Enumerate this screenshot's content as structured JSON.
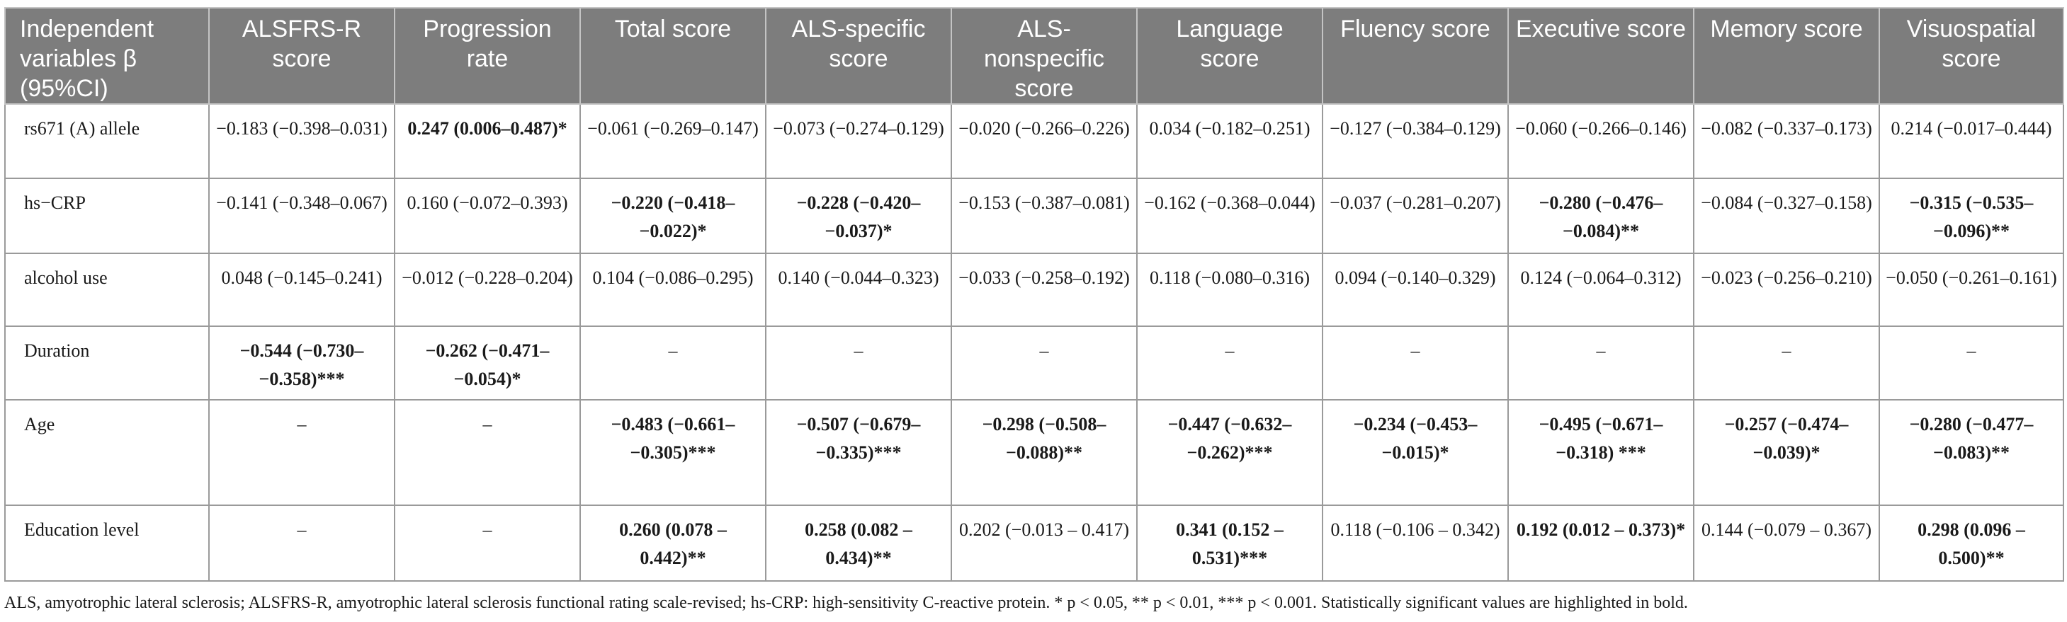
{
  "header": {
    "col0": "Independent variables β (95%CI)",
    "col1": "ALSFRS-R score",
    "col2": "Progression rate",
    "col3": "Total score",
    "col4": "ALS-specific score",
    "col5": "ALS-nonspecific score",
    "col6": "Language score",
    "col7": "Fluency score",
    "col8": "Executive score",
    "col9": "Memory score",
    "col10": "Visuospatial score"
  },
  "rows": {
    "rs671": {
      "label": "rs671 (A) allele",
      "c1": "−0.183 (−0.398–0.031)",
      "c2": "0.247 (0.006–0.487)*",
      "c3": "−0.061 (−0.269–0.147)",
      "c4": "−0.073 (−0.274–0.129)",
      "c5": "−0.020 (−0.266–0.226)",
      "c6": "0.034 (−0.182–0.251)",
      "c7": "−0.127 (−0.384–0.129)",
      "c8": "−0.060 (−0.266–0.146)",
      "c9": "−0.082 (−0.337–0.173)",
      "c10": "0.214 (−0.017–0.444)"
    },
    "hscrp": {
      "label": "hs−CRP",
      "c1": "−0.141 (−0.348–0.067)",
      "c2": "0.160 (−0.072–0.393)",
      "c3": "−0.220 (−0.418–−0.022)*",
      "c4": "−0.228 (−0.420–−0.037)*",
      "c5": "−0.153 (−0.387–0.081)",
      "c6": "−0.162 (−0.368–0.044)",
      "c7": "−0.037 (−0.281–0.207)",
      "c8": "−0.280 (−0.476–−0.084)**",
      "c9": "−0.084 (−0.327–0.158)",
      "c10": "−0.315 (−0.535–−0.096)**"
    },
    "alcohol": {
      "label": "alcohol use",
      "c1": "0.048 (−0.145–0.241)",
      "c2": "−0.012 (−0.228–0.204)",
      "c3": "0.104 (−0.086–0.295)",
      "c4": "0.140 (−0.044–0.323)",
      "c5": "−0.033 (−0.258–0.192)",
      "c6": "0.118 (−0.080–0.316)",
      "c7": "0.094 (−0.140–0.329)",
      "c8": "0.124 (−0.064–0.312)",
      "c9": "−0.023 (−0.256–0.210)",
      "c10": "−0.050 (−0.261–0.161)"
    },
    "duration": {
      "label": "Duration",
      "c1": "−0.544 (−0.730–−0.358)***",
      "c2": "−0.262 (−0.471–−0.054)*",
      "c3": "–",
      "c4": "–",
      "c5": "–",
      "c6": "–",
      "c7": "–",
      "c8": "–",
      "c9": "–",
      "c10": "–"
    },
    "age": {
      "label": "Age",
      "c1": "–",
      "c2": "–",
      "c3": "−0.483 (−0.661–−0.305)***",
      "c4": "−0.507 (−0.679–−0.335)***",
      "c5": "−0.298 (−0.508–−0.088)**",
      "c6": "−0.447 (−0.632–−0.262)***",
      "c7": "−0.234 (−0.453–−0.015)*",
      "c8": "−0.495 (−0.671–−0.318) ***",
      "c9": "−0.257 (−0.474–−0.039)*",
      "c10": "−0.280 (−0.477–−0.083)**"
    },
    "education": {
      "label": "Education level",
      "c1": "–",
      "c2": "–",
      "c3": "0.260 (0.078 – 0.442)**",
      "c4": "0.258 (0.082 – 0.434)**",
      "c5": "0.202 (−0.013 – 0.417)",
      "c6": "0.341 (0.152 – 0.531)***",
      "c7": "0.118 (−0.106 – 0.342)",
      "c8": "0.192 (0.012 – 0.373)*",
      "c9": "0.144 (−0.079 – 0.367)",
      "c10": "0.298 (0.096 – 0.500)**"
    }
  },
  "footnote": "ALS, amyotrophic lateral sclerosis; ALSFRS-R, amyotrophic lateral sclerosis functional rating scale-revised; hs-CRP: high-sensitivity C-reactive protein. * p < 0.05, ** p < 0.01, *** p < 0.001. Statistically significant values are highlighted in bold."
}
